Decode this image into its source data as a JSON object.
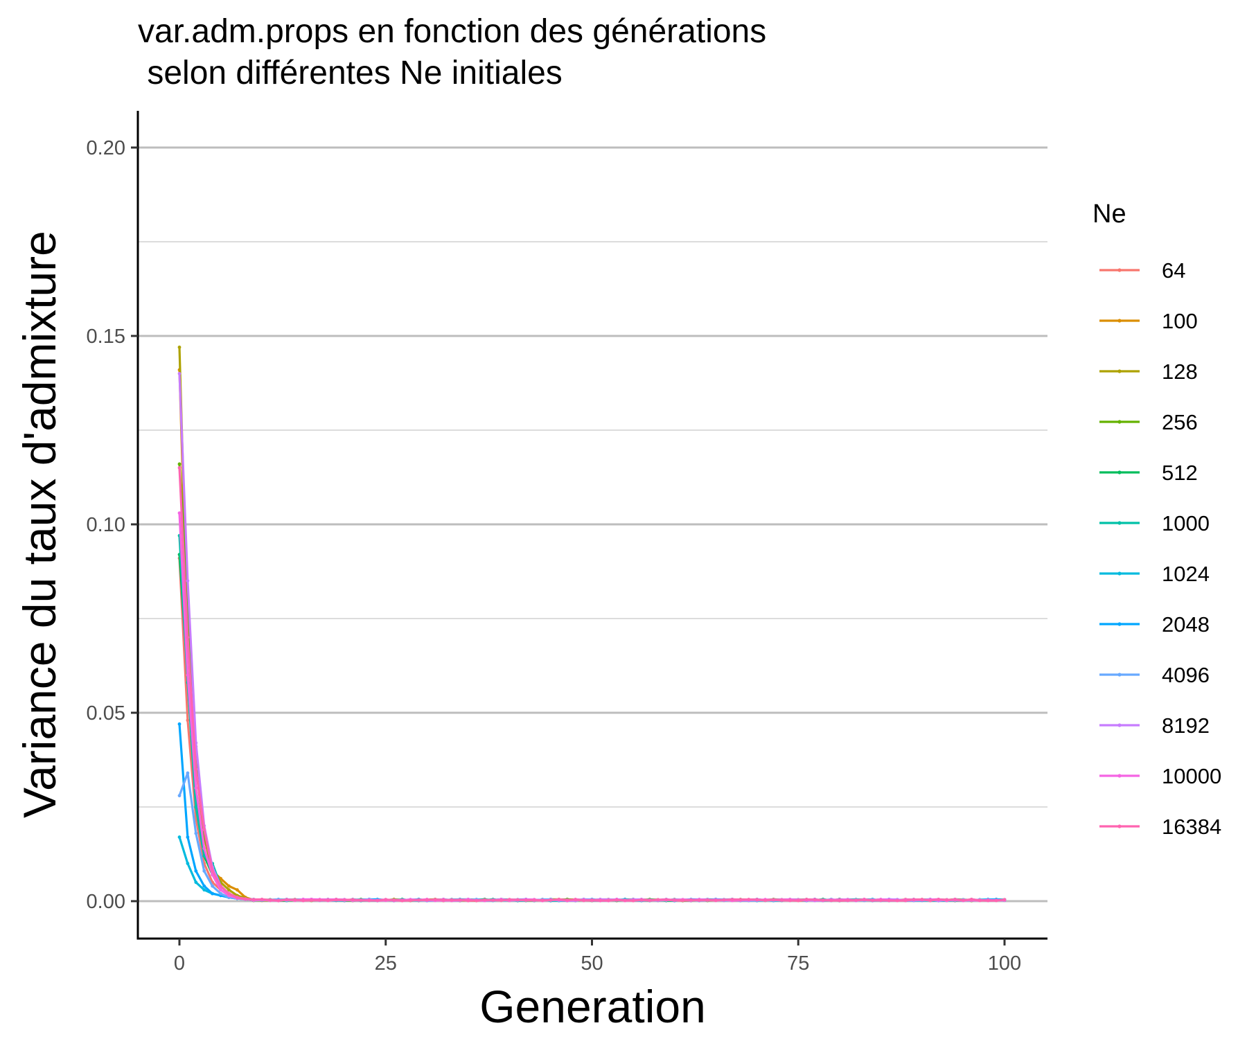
{
  "chart_data": {
    "type": "line",
    "title_lines": [
      "var.adm.props en fonction des générations",
      " selon différentes Ne initiales"
    ],
    "xlabel": "Generation",
    "ylabel": "Variance du taux d'admixture",
    "xlim": [
      -10,
      105
    ],
    "ylim": [
      -0.01,
      0.21
    ],
    "x_ticks": [
      0,
      25,
      50,
      75,
      100
    ],
    "x_tick_labels": [
      "0",
      "25",
      "50",
      "75",
      "100"
    ],
    "y_ticks": [
      0.0,
      0.05,
      0.1,
      0.15,
      0.2
    ],
    "y_tick_labels": [
      "0.00",
      "0.05",
      "0.10",
      "0.15",
      "0.20"
    ],
    "y_minor_gridlines": [
      0.025,
      0.075,
      0.125,
      0.175
    ],
    "grid": "horizontal",
    "legend": {
      "title": "Ne",
      "position": "right"
    },
    "x_range": [
      0,
      100
    ],
    "tail_value": 0.0003,
    "series": [
      {
        "name": "64",
        "color": "#F8766D",
        "head": [
          0.091,
          0.048,
          0.022,
          0.01,
          0.005,
          0.003,
          0.0015,
          0.0008,
          0.0005
        ]
      },
      {
        "name": "100",
        "color": "#DB8E00",
        "head": [
          0.141,
          0.07,
          0.036,
          0.017,
          0.008,
          0.006,
          0.004,
          0.003,
          0.001
        ]
      },
      {
        "name": "128",
        "color": "#AEA200",
        "head": [
          0.147,
          0.072,
          0.041,
          0.019,
          0.009,
          0.005,
          0.003,
          0.0015,
          0.0008
        ]
      },
      {
        "name": "256",
        "color": "#64B200",
        "head": [
          0.116,
          0.08,
          0.04,
          0.018,
          0.008,
          0.004,
          0.002,
          0.001,
          0.0006
        ]
      },
      {
        "name": "512",
        "color": "#00BD5C",
        "head": [
          0.092,
          0.06,
          0.028,
          0.012,
          0.007,
          0.004,
          0.002,
          0.001,
          0.0005
        ]
      },
      {
        "name": "1000",
        "color": "#00C1A7",
        "head": [
          0.097,
          0.058,
          0.025,
          0.012,
          0.01,
          0.004,
          0.002,
          0.001,
          0.0005
        ]
      },
      {
        "name": "1024",
        "color": "#00BADE",
        "head": [
          0.017,
          0.01,
          0.005,
          0.003,
          0.002,
          0.0015,
          0.001,
          0.0007,
          0.0005
        ]
      },
      {
        "name": "2048",
        "color": "#00A6FF",
        "head": [
          0.047,
          0.017,
          0.008,
          0.004,
          0.002,
          0.0015,
          0.001,
          0.0007,
          0.0005
        ]
      },
      {
        "name": "4096",
        "color": "#67A9FF",
        "head": [
          0.028,
          0.034,
          0.018,
          0.008,
          0.004,
          0.002,
          0.001,
          0.0007,
          0.0005
        ]
      },
      {
        "name": "8192",
        "color": "#C77CFF",
        "head": [
          0.14,
          0.085,
          0.042,
          0.02,
          0.009,
          0.004,
          0.002,
          0.001,
          0.0006
        ]
      },
      {
        "name": "10000",
        "color": "#F564E3",
        "head": [
          0.103,
          0.06,
          0.03,
          0.014,
          0.007,
          0.003,
          0.0015,
          0.0008,
          0.0005
        ]
      },
      {
        "name": "16384",
        "color": "#FF64B0",
        "head": [
          0.115,
          0.07,
          0.035,
          0.019,
          0.008,
          0.004,
          0.002,
          0.001,
          0.0006
        ]
      }
    ]
  }
}
